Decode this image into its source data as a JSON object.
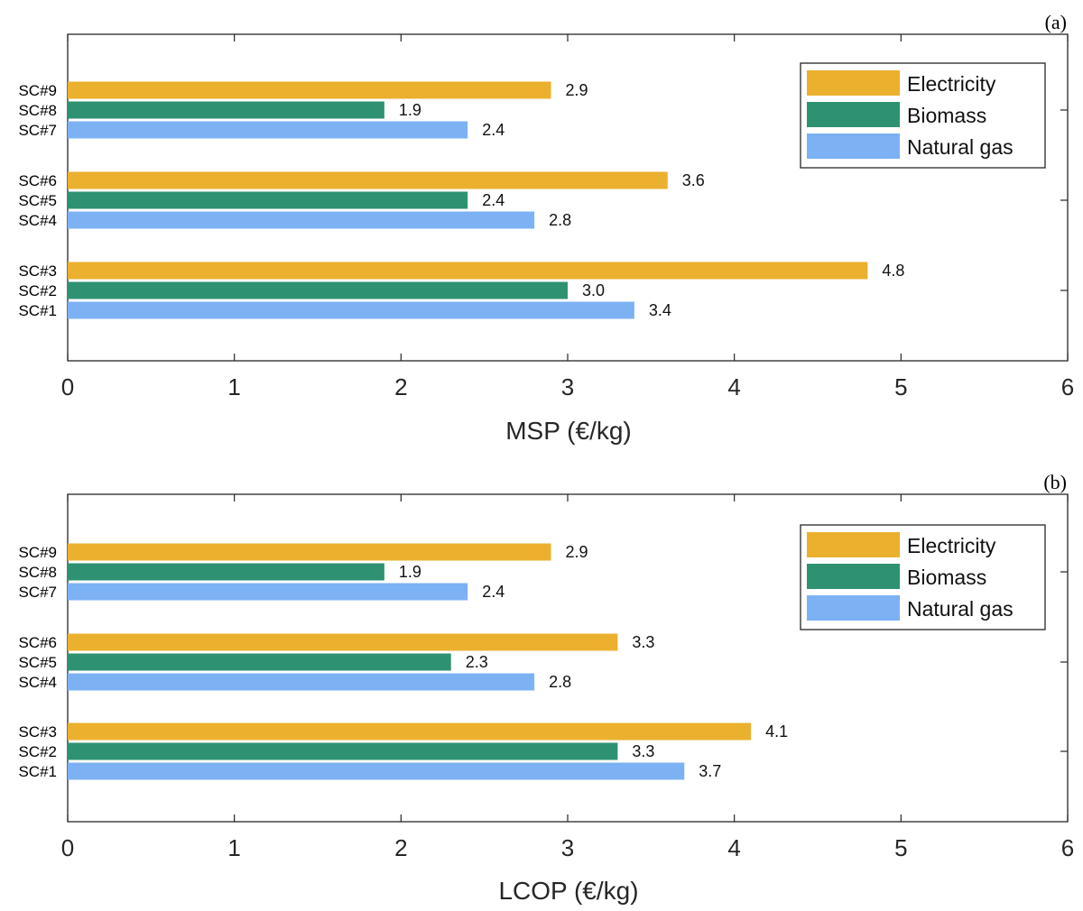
{
  "colors": {
    "electricity": "#EBB02D",
    "biomass": "#2E9272",
    "natural_gas": "#7CB2F4",
    "axis": "#262626"
  },
  "chart_data": [
    {
      "type": "bar",
      "orientation": "horizontal",
      "panel_label": "(a)",
      "xlabel": "MSP (€/kg)",
      "ylabel": "",
      "xlim": [
        0,
        6
      ],
      "xticks": [
        "0",
        "1",
        "2",
        "3",
        "4",
        "5",
        "6"
      ],
      "categories": [
        "SC#1",
        "SC#2",
        "SC#3",
        "SC#4",
        "SC#5",
        "SC#6",
        "SC#7",
        "SC#8",
        "SC#9"
      ],
      "values": [
        3.4,
        3.0,
        4.8,
        2.8,
        2.4,
        3.6,
        2.4,
        1.9,
        2.9
      ],
      "value_labels": [
        "3.4",
        "3.0",
        "4.8",
        "2.8",
        "2.4",
        "3.6",
        "2.4",
        "1.9",
        "2.9"
      ],
      "bar_series": [
        "Natural gas",
        "Biomass",
        "Electricity",
        "Natural gas",
        "Biomass",
        "Electricity",
        "Natural gas",
        "Biomass",
        "Electricity"
      ],
      "legend": [
        "Electricity",
        "Biomass",
        "Natural gas"
      ],
      "legend_position": "top-right",
      "grid": false
    },
    {
      "type": "bar",
      "orientation": "horizontal",
      "panel_label": "(b)",
      "xlabel": "LCOP (€/kg)",
      "ylabel": "",
      "xlim": [
        0,
        6
      ],
      "xticks": [
        "0",
        "1",
        "2",
        "3",
        "4",
        "5",
        "6"
      ],
      "categories": [
        "SC#1",
        "SC#2",
        "SC#3",
        "SC#4",
        "SC#5",
        "SC#6",
        "SC#7",
        "SC#8",
        "SC#9"
      ],
      "values": [
        3.7,
        3.3,
        4.1,
        2.8,
        2.3,
        3.3,
        2.4,
        1.9,
        2.9
      ],
      "value_labels": [
        "3.7",
        "3.3",
        "4.1",
        "2.8",
        "2.3",
        "3.3",
        "2.4",
        "1.9",
        "2.9"
      ],
      "bar_series": [
        "Natural gas",
        "Biomass",
        "Electricity",
        "Natural gas",
        "Biomass",
        "Electricity",
        "Natural gas",
        "Biomass",
        "Electricity"
      ],
      "legend": [
        "Electricity",
        "Biomass",
        "Natural gas"
      ],
      "legend_position": "top-right",
      "grid": false
    }
  ]
}
